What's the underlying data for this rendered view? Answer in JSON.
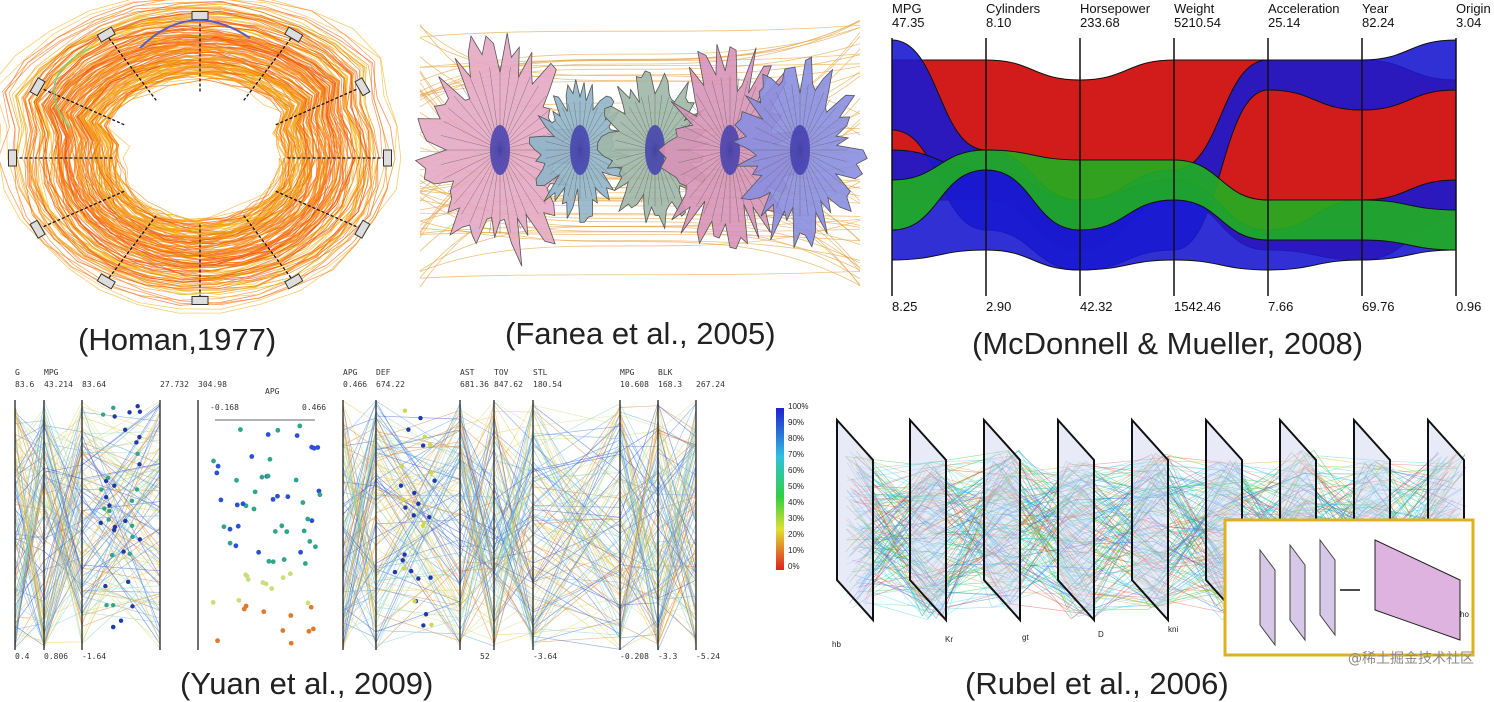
{
  "captions": {
    "homan": "(Homan,1977)",
    "fanea": "(Fanea et al., 2005)",
    "mcdonnell": "(McDonnell & Mueller, 2008)",
    "yuan": "(Yuan et al., 2009)",
    "rubel": "(Rubel et al., 2006)"
  },
  "mcdonnell_axes": [
    {
      "name": "MPG",
      "max": "47.35",
      "min": "8.25"
    },
    {
      "name": "Cylinders",
      "max": "8.10",
      "min": "2.90"
    },
    {
      "name": "Horsepower",
      "max": "233.68",
      "min": "42.32"
    },
    {
      "name": "Weight",
      "max": "5210.54",
      "min": "1542.46"
    },
    {
      "name": "Acceleration",
      "max": "25.14",
      "min": "7.66"
    },
    {
      "name": "Year",
      "max": "82.24",
      "min": "69.76"
    },
    {
      "name": "Origin",
      "max": "3.04",
      "min": "0.96"
    }
  ],
  "yuan_top": [
    {
      "name": "G",
      "val": "83.6"
    },
    {
      "name": "MPG",
      "val": "43.214"
    },
    {
      "name": "",
      "val": "83.64"
    },
    {
      "name": "",
      "val": "27.732"
    },
    {
      "name": "",
      "val": "304.98"
    },
    {
      "name": "APG",
      "val": "0.466"
    },
    {
      "name": "DEF",
      "val": "674.22"
    },
    {
      "name": "AST",
      "val": "681.36"
    },
    {
      "name": "TOV",
      "val": "847.62"
    },
    {
      "name": "STL",
      "val": "180.54"
    },
    {
      "name": "MPG",
      "val": "10.608"
    },
    {
      "name": "BLK",
      "val": "168.3"
    },
    {
      "name": "",
      "val": "267.24"
    }
  ],
  "yuan_bottom": [
    "0.4",
    "0.806",
    "-1.64",
    "-0.208",
    "-3.3",
    "-5.24",
    "-3.64",
    "52"
  ],
  "yuan_scatter": {
    "label": "APG",
    "min": "-0.168",
    "max": "0.466"
  },
  "rubel_scale": [
    "100%",
    "90%",
    "80%",
    "70%",
    "60%",
    "50%",
    "40%",
    "30%",
    "20%",
    "10%",
    "0%"
  ],
  "rubel_axes": [
    "hb",
    "Kr",
    "gt",
    "D",
    "kni",
    "ho"
  ],
  "watermark": "@稀土掘金技术社区"
}
